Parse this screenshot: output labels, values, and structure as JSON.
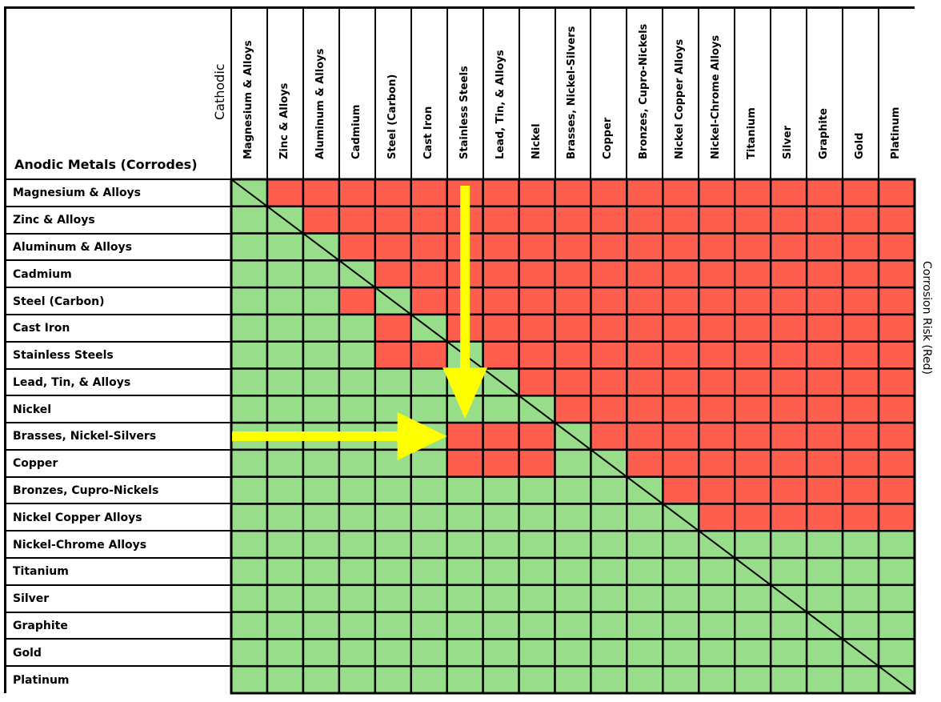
{
  "chart_data": {
    "type": "heatmap",
    "title": "",
    "row_axis_label": "Anodic Metals (Corrodes)",
    "col_axis_label": "Cathodic",
    "legend_label": "Corrosion Risk (Red)",
    "columns": [
      "Magnesium & Alloys",
      "Zinc & Alloys",
      "Aluminum & Alloys",
      "Cadmium",
      "Steel (Carbon)",
      "Cast Iron",
      "Stainless Steels",
      "Lead, Tin, & Alloys",
      "Nickel",
      "Brasses, Nickel-Silvers",
      "Copper",
      "Bronzes, Cupro-Nickels",
      "Nickel Copper Alloys",
      "Nickel-Chrome Alloys",
      "Titanium",
      "Silver",
      "Graphite",
      "Gold",
      "Platinum"
    ],
    "rows": [
      "Magnesium & Alloys",
      "Zinc & Alloys",
      "Aluminum & Alloys",
      "Cadmium",
      "Steel (Carbon)",
      "Cast Iron",
      "Stainless Steels",
      "Lead, Tin, & Alloys",
      "Nickel",
      "Brasses, Nickel-Silvers",
      "Copper",
      "Bronzes, Cupro-Nickels",
      "Nickel Copper Alloys",
      "Nickel-Chrome Alloys",
      "Titanium",
      "Silver",
      "Graphite",
      "Gold",
      "Platinum"
    ],
    "values": [
      [
        0,
        1,
        1,
        1,
        1,
        1,
        1,
        1,
        1,
        1,
        1,
        1,
        1,
        1,
        1,
        1,
        1,
        1,
        1
      ],
      [
        0,
        0,
        1,
        1,
        1,
        1,
        1,
        1,
        1,
        1,
        1,
        1,
        1,
        1,
        1,
        1,
        1,
        1,
        1
      ],
      [
        0,
        0,
        0,
        1,
        1,
        1,
        1,
        1,
        1,
        1,
        1,
        1,
        1,
        1,
        1,
        1,
        1,
        1,
        1
      ],
      [
        0,
        0,
        0,
        0,
        1,
        1,
        1,
        1,
        1,
        1,
        1,
        1,
        1,
        1,
        1,
        1,
        1,
        1,
        1
      ],
      [
        0,
        0,
        0,
        1,
        0,
        1,
        1,
        1,
        1,
        1,
        1,
        1,
        1,
        1,
        1,
        1,
        1,
        1,
        1
      ],
      [
        0,
        0,
        0,
        0,
        1,
        0,
        1,
        1,
        1,
        1,
        1,
        1,
        1,
        1,
        1,
        1,
        1,
        1,
        1
      ],
      [
        0,
        0,
        0,
        0,
        1,
        1,
        0,
        1,
        1,
        1,
        1,
        1,
        1,
        1,
        1,
        1,
        1,
        1,
        1
      ],
      [
        0,
        0,
        0,
        0,
        0,
        0,
        0,
        0,
        1,
        1,
        1,
        1,
        1,
        1,
        1,
        1,
        1,
        1,
        1
      ],
      [
        0,
        0,
        0,
        0,
        0,
        0,
        0,
        0,
        0,
        1,
        1,
        1,
        1,
        1,
        1,
        1,
        1,
        1,
        1
      ],
      [
        0,
        0,
        0,
        0,
        0,
        0,
        1,
        1,
        1,
        0,
        1,
        1,
        1,
        1,
        1,
        1,
        1,
        1,
        1
      ],
      [
        0,
        0,
        0,
        0,
        0,
        0,
        1,
        1,
        1,
        0,
        0,
        1,
        1,
        1,
        1,
        1,
        1,
        1,
        1
      ],
      [
        0,
        0,
        0,
        0,
        0,
        0,
        0,
        0,
        0,
        0,
        0,
        0,
        1,
        1,
        1,
        1,
        1,
        1,
        1
      ],
      [
        0,
        0,
        0,
        0,
        0,
        0,
        0,
        0,
        0,
        0,
        0,
        0,
        0,
        1,
        1,
        1,
        1,
        1,
        1
      ],
      [
        0,
        0,
        0,
        0,
        0,
        0,
        0,
        0,
        0,
        0,
        0,
        0,
        0,
        0,
        0,
        0,
        0,
        0,
        0
      ],
      [
        0,
        0,
        0,
        0,
        0,
        0,
        0,
        0,
        0,
        0,
        0,
        0,
        0,
        0,
        0,
        0,
        0,
        0,
        0
      ],
      [
        0,
        0,
        0,
        0,
        0,
        0,
        0,
        0,
        0,
        0,
        0,
        0,
        0,
        0,
        0,
        0,
        0,
        0,
        0
      ],
      [
        0,
        0,
        0,
        0,
        0,
        0,
        0,
        0,
        0,
        0,
        0,
        0,
        0,
        0,
        0,
        0,
        0,
        0,
        0
      ],
      [
        0,
        0,
        0,
        0,
        0,
        0,
        0,
        0,
        0,
        0,
        0,
        0,
        0,
        0,
        0,
        0,
        0,
        0,
        0
      ],
      [
        0,
        0,
        0,
        0,
        0,
        0,
        0,
        0,
        0,
        0,
        0,
        0,
        0,
        0,
        0,
        0,
        0,
        0,
        0
      ]
    ],
    "value_meaning": {
      "1": "corrosion risk",
      "0": "no risk"
    },
    "colors": {
      "risk": "#fd5e4d",
      "safe": "#98dd8a",
      "arrow": "#ffff00"
    },
    "highlight": {
      "row": "Brasses, Nickel-Silvers",
      "column": "Stainless Steels"
    },
    "diagonal_line": true,
    "grid": true
  }
}
